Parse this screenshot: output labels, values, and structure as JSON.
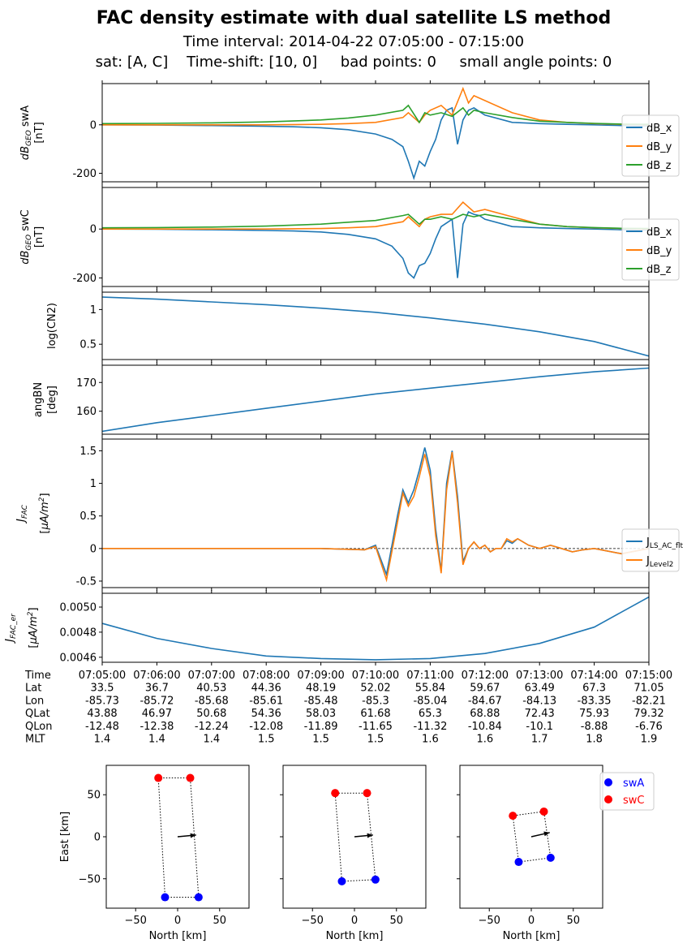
{
  "header": {
    "title": "FAC density estimate with dual satellite LS method",
    "subtitle1": "Time interval:  2014-04-22  07:05:00 - 07:15:00",
    "subtitle2": "sat: [A, C]    Time-shift: [10, 0]     bad points: 0     small angle points: 0"
  },
  "colors": {
    "blue": "#1f77b4",
    "orange": "#ff7f0e",
    "green": "#2ca02c",
    "swA": "#0000ff",
    "swC": "#ff0000"
  },
  "chart_data": [
    {
      "type": "line",
      "ylabel": "dB_GEO swA [nT]",
      "yticks": [
        -200,
        0
      ],
      "ylim": [
        -235,
        170
      ],
      "xlim": [
        0,
        10
      ],
      "legend": [
        "dB_x",
        "dB_y",
        "dB_z"
      ],
      "legend_position": "right",
      "series": [
        {
          "name": "dB_x",
          "x": [
            0,
            1,
            2,
            3,
            3.5,
            4,
            4.5,
            5,
            5.3,
            5.5,
            5.6,
            5.7,
            5.8,
            5.9,
            6.0,
            6.1,
            6.2,
            6.3,
            6.4,
            6.5,
            6.6,
            6.7,
            6.8,
            6.9,
            7.0,
            7.5,
            8,
            8.5,
            9,
            9.5,
            10
          ],
          "y": [
            0,
            -1,
            -3,
            -6,
            -8,
            -12,
            -20,
            -38,
            -60,
            -90,
            -150,
            -220,
            -150,
            -170,
            -110,
            -60,
            20,
            60,
            70,
            -80,
            20,
            60,
            70,
            55,
            40,
            10,
            5,
            2,
            0,
            -3,
            -5
          ]
        },
        {
          "name": "dB_y",
          "x": [
            0,
            1,
            2,
            3,
            4,
            4.5,
            5,
            5.5,
            5.6,
            5.8,
            5.9,
            6.0,
            6.2,
            6.4,
            6.6,
            6.7,
            6.8,
            7.0,
            7.5,
            8,
            8.5,
            9,
            9.5,
            10
          ],
          "y": [
            0,
            0,
            0,
            0,
            2,
            5,
            10,
            30,
            50,
            10,
            40,
            60,
            80,
            40,
            150,
            90,
            120,
            100,
            50,
            20,
            10,
            5,
            2,
            0
          ]
        },
        {
          "name": "dB_z",
          "x": [
            0,
            1,
            2,
            3,
            4,
            4.5,
            5,
            5.5,
            5.6,
            5.8,
            5.9,
            6.0,
            6.2,
            6.4,
            6.6,
            6.7,
            6.8,
            7.0,
            7.5,
            8,
            8.5,
            9,
            9.5,
            10
          ],
          "y": [
            5,
            6,
            8,
            12,
            20,
            28,
            40,
            60,
            80,
            10,
            50,
            40,
            50,
            35,
            70,
            40,
            60,
            50,
            30,
            15,
            10,
            6,
            3,
            2
          ]
        }
      ]
    },
    {
      "type": "line",
      "ylabel": "dB_GEO swC [nT]",
      "yticks": [
        -200,
        0
      ],
      "ylim": [
        -235,
        170
      ],
      "xlim": [
        0,
        10
      ],
      "legend": [
        "dB_x",
        "dB_y",
        "dB_z"
      ],
      "legend_position": "right",
      "series": [
        {
          "name": "dB_x",
          "x": [
            0,
            1,
            2,
            3,
            3.5,
            4,
            4.5,
            5,
            5.3,
            5.5,
            5.6,
            5.7,
            5.8,
            5.9,
            6.0,
            6.1,
            6.2,
            6.4,
            6.5,
            6.6,
            6.7,
            6.8,
            6.9,
            7.0,
            7.5,
            8,
            8.5,
            9,
            9.5,
            10
          ],
          "y": [
            0,
            -1,
            -3,
            -6,
            -8,
            -12,
            -22,
            -40,
            -70,
            -120,
            -180,
            -200,
            -150,
            -140,
            -100,
            -40,
            10,
            40,
            -200,
            20,
            70,
            60,
            55,
            40,
            10,
            5,
            2,
            0,
            -3,
            -5
          ]
        },
        {
          "name": "dB_y",
          "x": [
            0,
            1,
            2,
            3,
            4,
            4.5,
            5,
            5.5,
            5.6,
            5.8,
            5.9,
            6.0,
            6.2,
            6.4,
            6.6,
            6.8,
            7.0,
            7.5,
            8,
            8.5,
            9,
            9.5,
            10
          ],
          "y": [
            0,
            0,
            0,
            0,
            2,
            5,
            10,
            30,
            50,
            10,
            40,
            50,
            60,
            60,
            110,
            70,
            80,
            50,
            20,
            10,
            5,
            2,
            0
          ]
        },
        {
          "name": "dB_z",
          "x": [
            0,
            1,
            2,
            3,
            4,
            4.5,
            5,
            5.5,
            5.6,
            5.8,
            5.9,
            6.0,
            6.2,
            6.4,
            6.6,
            6.8,
            7.0,
            7.5,
            8,
            8.5,
            9,
            9.5,
            10
          ],
          "y": [
            5,
            6,
            8,
            12,
            20,
            28,
            35,
            55,
            60,
            20,
            40,
            40,
            50,
            40,
            60,
            50,
            60,
            40,
            20,
            10,
            6,
            3,
            2
          ]
        }
      ]
    },
    {
      "type": "line",
      "ylabel": "log(CN2)",
      "yticks": [
        0.5,
        1.0
      ],
      "ylim": [
        0.28,
        1.25
      ],
      "xlim": [
        0,
        10
      ],
      "series": [
        {
          "name": "",
          "x": [
            0,
            1,
            2,
            3,
            4,
            5,
            6,
            7,
            8,
            9,
            10
          ],
          "y": [
            1.18,
            1.15,
            1.11,
            1.07,
            1.02,
            0.96,
            0.88,
            0.79,
            0.68,
            0.54,
            0.33
          ]
        }
      ]
    },
    {
      "type": "line",
      "ylabel": "angBN [deg]",
      "yticks": [
        160,
        170
      ],
      "ylim": [
        152,
        176
      ],
      "xlim": [
        0,
        10
      ],
      "series": [
        {
          "name": "",
          "x": [
            0,
            1,
            2,
            3,
            4,
            5,
            6,
            7,
            8,
            9,
            10
          ],
          "y": [
            153,
            156,
            158.5,
            161,
            163.5,
            166,
            168,
            170,
            172,
            173.7,
            175
          ]
        }
      ]
    },
    {
      "type": "line",
      "ylabel": "J_FAC [μA/m²]",
      "yticks": [
        -0.5,
        0.0,
        0.5,
        1.0,
        1.5
      ],
      "ylim": [
        -0.6,
        1.68
      ],
      "xlim": [
        0,
        10
      ],
      "legend": [
        "J_LS_AC_flt",
        "J_Level2"
      ],
      "legend_position": "right",
      "reference_line": 0,
      "series": [
        {
          "name": "J_LS_AC_flt",
          "x": [
            0,
            2,
            4,
            4.8,
            5.0,
            5.2,
            5.4,
            5.5,
            5.6,
            5.7,
            5.8,
            5.9,
            6.0,
            6.1,
            6.2,
            6.3,
            6.4,
            6.5,
            6.6,
            6.7,
            6.8,
            6.9,
            7.0,
            7.1,
            7.2,
            7.3,
            7.4,
            7.5,
            7.6,
            7.8,
            8.0,
            8.2,
            8.4,
            8.6,
            8.8,
            9.0,
            9.5,
            10
          ],
          "y": [
            0,
            0,
            0,
            -0.02,
            0.05,
            -0.4,
            0.5,
            0.9,
            0.7,
            0.9,
            1.2,
            1.55,
            1.2,
            0.3,
            -0.35,
            1.0,
            1.5,
            0.8,
            -0.2,
            0.0,
            0.1,
            0.0,
            0.05,
            -0.05,
            0.0,
            0.0,
            0.12,
            0.08,
            0.15,
            0.05,
            0.0,
            0.05,
            0.0,
            -0.05,
            -0.02,
            0.0,
            -0.08,
            0.0
          ]
        },
        {
          "name": "J_Level2",
          "x": [
            0,
            2,
            4,
            4.8,
            5.0,
            5.2,
            5.4,
            5.5,
            5.6,
            5.7,
            5.8,
            5.9,
            6.0,
            6.1,
            6.2,
            6.3,
            6.4,
            6.5,
            6.6,
            6.7,
            6.8,
            6.9,
            7.0,
            7.1,
            7.2,
            7.3,
            7.4,
            7.5,
            7.6,
            7.8,
            8.0,
            8.2,
            8.4,
            8.6,
            8.8,
            9.0,
            9.5,
            10
          ],
          "y": [
            0,
            0,
            0,
            -0.02,
            0.03,
            -0.48,
            0.4,
            0.85,
            0.65,
            0.8,
            1.1,
            1.45,
            1.1,
            0.2,
            -0.38,
            0.9,
            1.48,
            0.7,
            -0.25,
            0.0,
            0.1,
            0.0,
            0.05,
            -0.05,
            0.0,
            0.0,
            0.15,
            0.1,
            0.15,
            0.05,
            0.0,
            0.05,
            0.0,
            -0.05,
            -0.02,
            0.0,
            -0.08,
            0.0
          ]
        }
      ]
    },
    {
      "type": "line",
      "ylabel": "J_FAC_er [μA/m²]",
      "yticks": [
        0.0046,
        0.0048,
        0.005
      ],
      "ylim": [
        0.00456,
        0.00511
      ],
      "xlim": [
        0,
        10
      ],
      "series": [
        {
          "name": "",
          "x": [
            0,
            1,
            2,
            3,
            4,
            5,
            6,
            7,
            8,
            9,
            10
          ],
          "y": [
            0.00487,
            0.00475,
            0.00467,
            0.00461,
            0.00459,
            0.00458,
            0.00459,
            0.00463,
            0.00471,
            0.00484,
            0.00508
          ]
        }
      ]
    },
    {
      "type": "scatter",
      "xlabel": "North [km]",
      "ylabel": "East [km]",
      "xticks": [
        -50,
        0,
        50
      ],
      "yticks": [
        -50,
        0,
        50
      ],
      "xlim": [
        -85,
        85
      ],
      "ylim": [
        -85,
        85
      ],
      "series": [
        {
          "name": "swA",
          "points": [
            [
              -15,
              -72
            ],
            [
              25,
              -72
            ]
          ]
        },
        {
          "name": "swC",
          "points": [
            [
              -23,
              70
            ],
            [
              15,
              70
            ]
          ]
        }
      ],
      "arrow": [
        [
          0,
          0
        ],
        [
          22,
          2
        ]
      ]
    },
    {
      "type": "scatter",
      "xlabel": "North [km]",
      "xticks": [
        -50,
        0,
        50
      ],
      "xlim": [
        -85,
        85
      ],
      "ylim": [
        -85,
        85
      ],
      "series": [
        {
          "name": "swA",
          "points": [
            [
              -15,
              -53
            ],
            [
              25,
              -51
            ]
          ]
        },
        {
          "name": "swC",
          "points": [
            [
              -23,
              52
            ],
            [
              15,
              52
            ]
          ]
        }
      ],
      "arrow": [
        [
          0,
          0
        ],
        [
          22,
          2
        ]
      ]
    },
    {
      "type": "scatter",
      "xlabel": "North [km]",
      "xticks": [
        -50,
        0,
        50
      ],
      "xlim": [
        -85,
        85
      ],
      "ylim": [
        -85,
        85
      ],
      "legend": [
        "swA",
        "swC"
      ],
      "legend_position": "top-right",
      "series": [
        {
          "name": "swA",
          "points": [
            [
              -15,
              -30
            ],
            [
              23,
              -25
            ]
          ]
        },
        {
          "name": "swC",
          "points": [
            [
              -22,
              25
            ],
            [
              15,
              30
            ]
          ]
        }
      ],
      "arrow": [
        [
          0,
          0
        ],
        [
          22,
          5
        ]
      ]
    }
  ],
  "time_table": {
    "rows": [
      {
        "label": "Time",
        "values": [
          "07:05:00",
          "07:06:00",
          "07:07:00",
          "07:08:00",
          "07:09:00",
          "07:10:00",
          "07:11:00",
          "07:12:00",
          "07:13:00",
          "07:14:00",
          "07:15:00"
        ]
      },
      {
        "label": "Lat",
        "values": [
          "33.5",
          "36.7",
          "40.53",
          "44.36",
          "48.19",
          "52.02",
          "55.84",
          "59.67",
          "63.49",
          "67.3",
          "71.05"
        ]
      },
      {
        "label": "Lon",
        "values": [
          "-85.73",
          "-85.72",
          "-85.68",
          "-85.61",
          "-85.48",
          "-85.3",
          "-85.04",
          "-84.67",
          "-84.13",
          "-83.35",
          "-82.21"
        ]
      },
      {
        "label": "QLat",
        "values": [
          "43.88",
          "46.97",
          "50.68",
          "54.36",
          "58.03",
          "61.68",
          "65.3",
          "68.88",
          "72.43",
          "75.93",
          "79.32"
        ]
      },
      {
        "label": "QLon",
        "values": [
          "-12.48",
          "-12.38",
          "-12.24",
          "-12.08",
          "-11.89",
          "-11.65",
          "-11.32",
          "-10.84",
          "-10.1",
          "-8.88",
          "-6.76"
        ]
      },
      {
        "label": "MLT",
        "values": [
          "1.4",
          "1.4",
          "1.4",
          "1.5",
          "1.5",
          "1.5",
          "1.6",
          "1.6",
          "1.7",
          "1.8",
          "1.9"
        ]
      }
    ]
  }
}
